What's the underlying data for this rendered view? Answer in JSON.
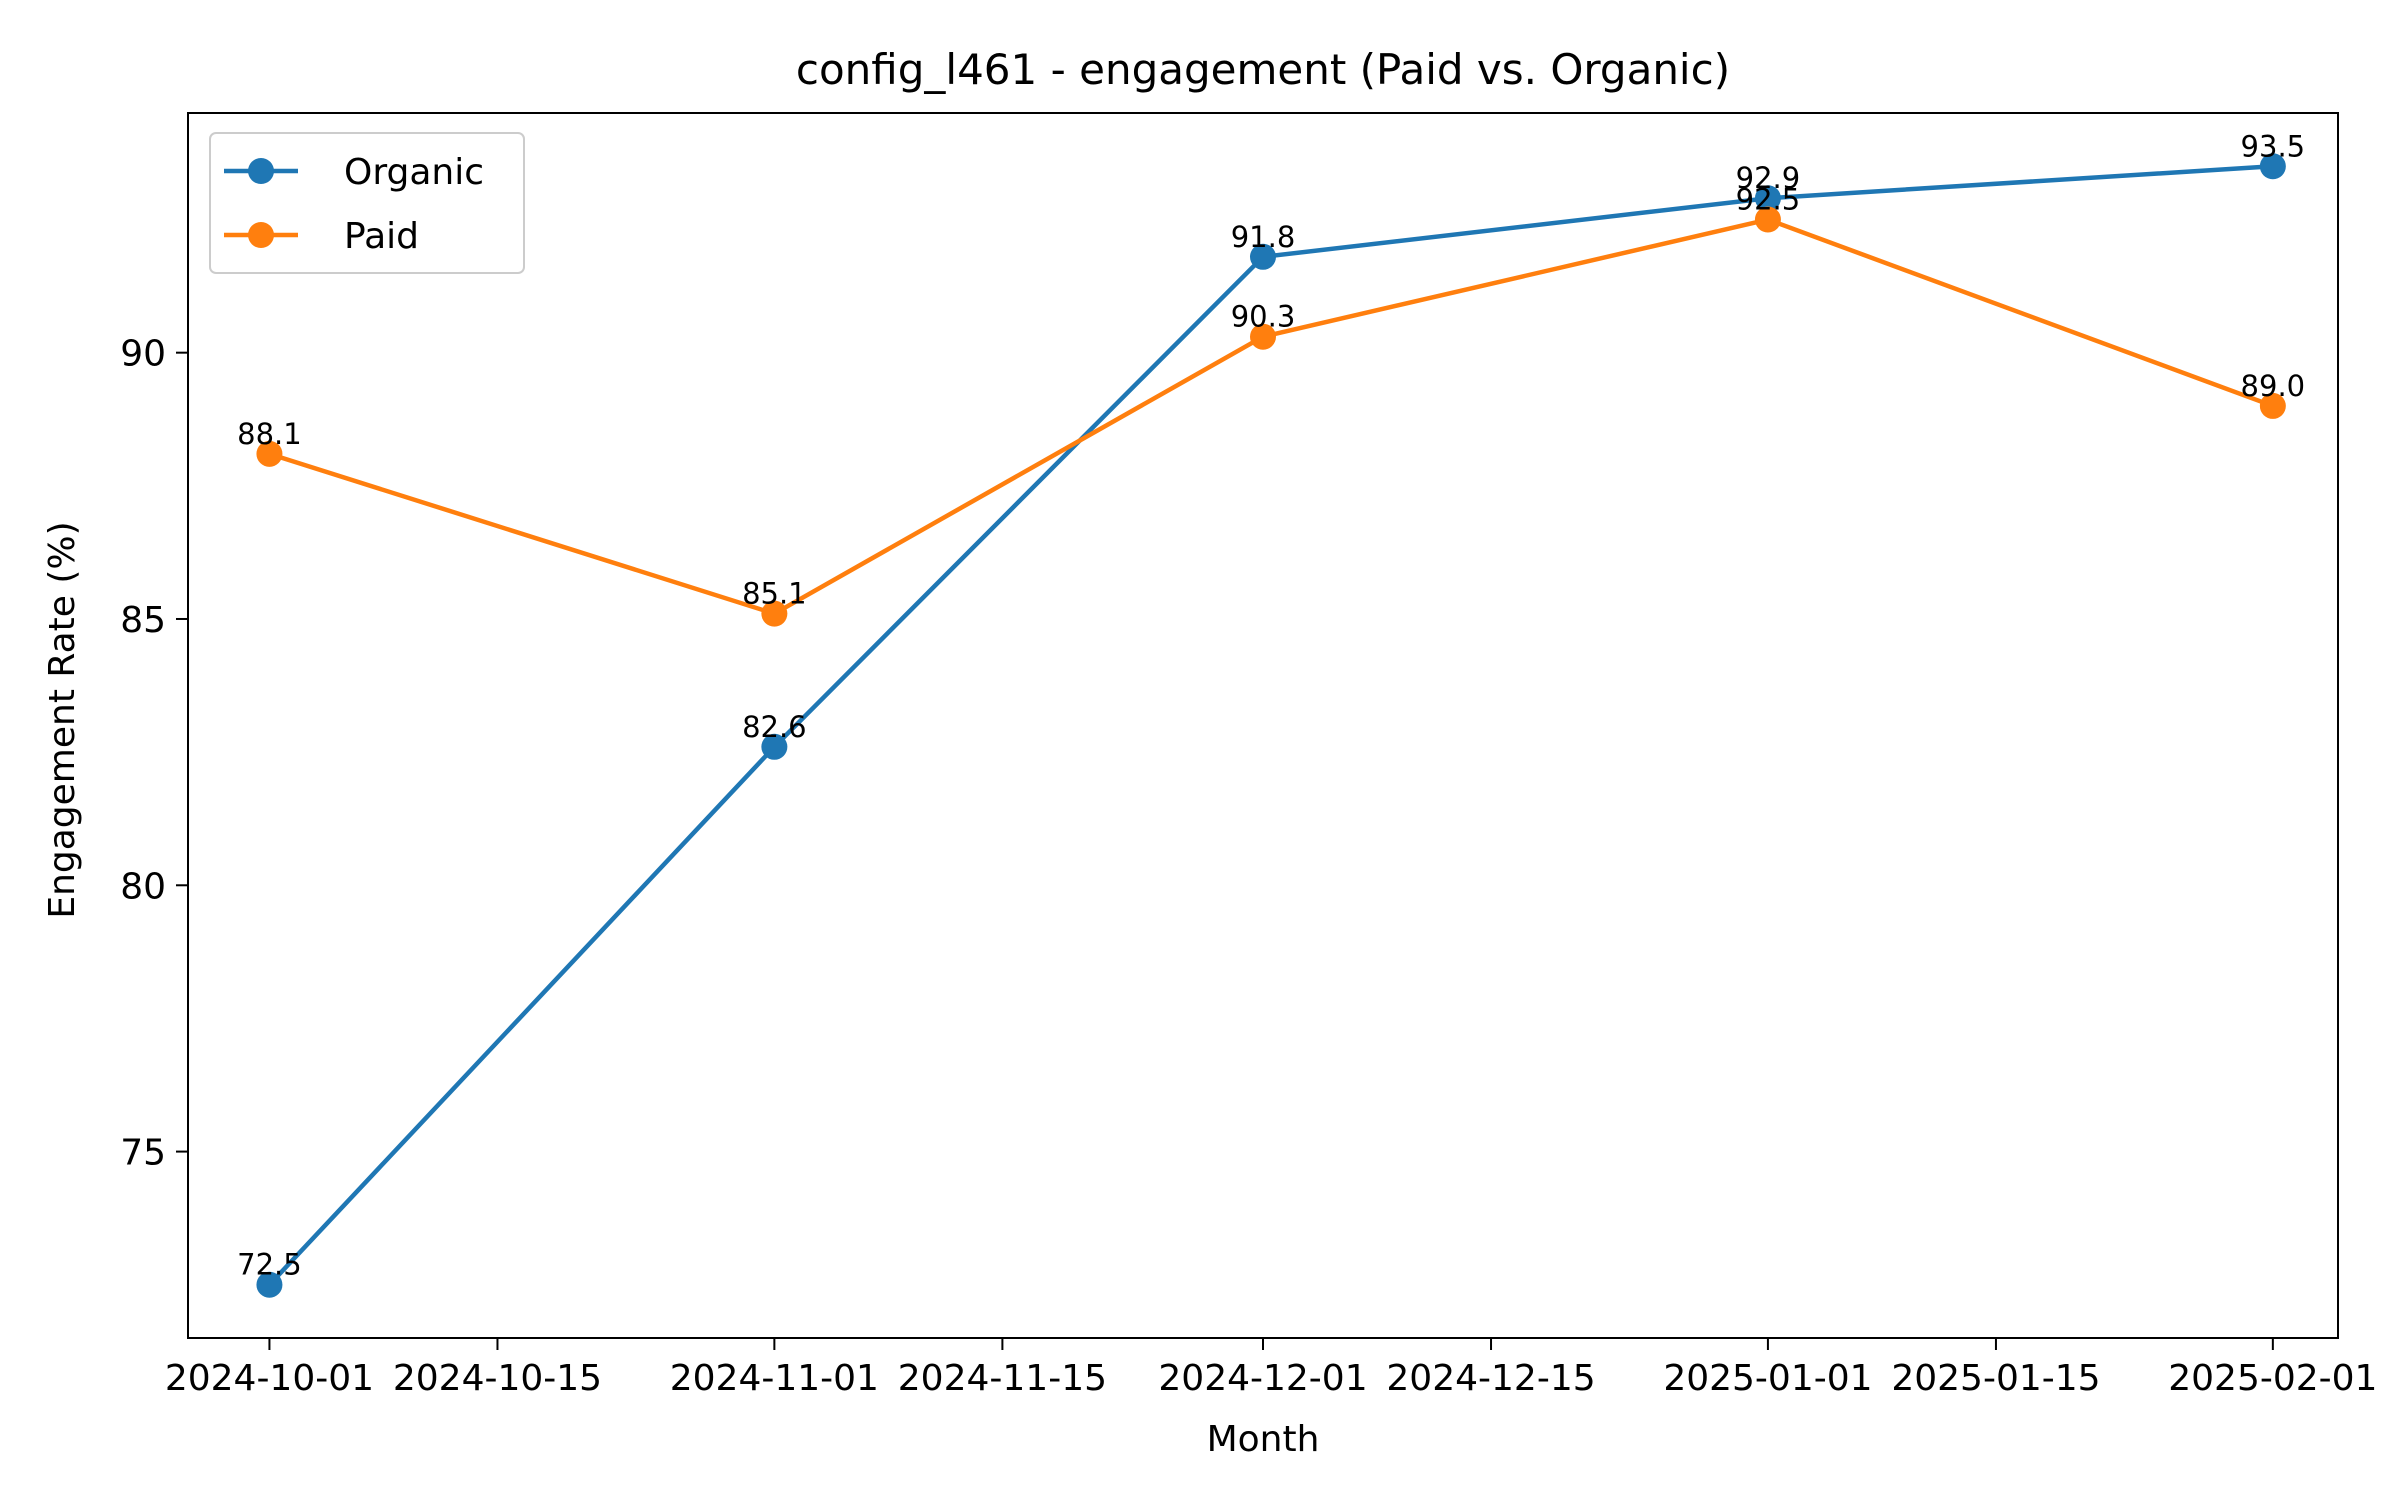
{
  "chart_data": {
    "type": "line",
    "title": "config_l461 - engagement (Paid vs. Organic)",
    "xlabel": "Month",
    "ylabel": "Engagement Rate (%)",
    "x": [
      "2024-10-01",
      "2024-11-01",
      "2024-12-01",
      "2025-01-01",
      "2025-02-01"
    ],
    "x_ticks": [
      "2024-10-01",
      "2024-10-15",
      "2024-11-01",
      "2024-11-15",
      "2024-12-01",
      "2024-12-15",
      "2025-01-01",
      "2025-01-15",
      "2025-02-01"
    ],
    "y_ticks": [
      75,
      80,
      85,
      90
    ],
    "xlim": [
      "2024-09-26",
      "2025-02-05"
    ],
    "ylim": [
      71.5,
      94.5
    ],
    "grid": false,
    "legend_position": "upper-left",
    "series": [
      {
        "name": "Organic",
        "color": "#1f77b4",
        "values": [
          72.5,
          82.6,
          91.8,
          92.9,
          93.5
        ],
        "labels": [
          "72.5",
          "82.6",
          "91.8",
          "92.9",
          "93.5"
        ]
      },
      {
        "name": "Paid",
        "color": "#ff7f0e",
        "values": [
          88.1,
          85.1,
          90.3,
          92.5,
          89.0
        ],
        "labels": [
          "88.1",
          "85.1",
          "90.3",
          "92.5",
          "89.0"
        ]
      }
    ]
  }
}
